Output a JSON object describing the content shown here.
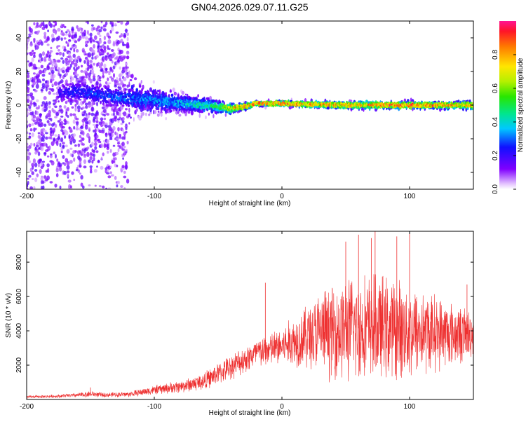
{
  "title": "GN04.2026.029.07.11.G25",
  "chart_data": [
    {
      "type": "heatmap",
      "xlabel": "Height of straight line (km)",
      "ylabel": "Frequency (Hz)",
      "xlim": [
        -200,
        150
      ],
      "ylim": [
        -50,
        50
      ],
      "x_ticks": [
        -200,
        -100,
        0,
        100
      ],
      "y_ticks": [
        -40,
        -20,
        0,
        20,
        40
      ],
      "colorbar": {
        "label": "Normalized spectral amplitude",
        "range": [
          0,
          1
        ],
        "ticks": [
          "0.0",
          "0.2",
          "0.4",
          "0.6",
          "0.8"
        ],
        "tick_values": [
          0,
          0.2,
          0.4,
          0.6,
          0.8
        ]
      },
      "band": {
        "center_frequency_hz": [
          [
            -200,
            5
          ],
          [
            -160,
            8
          ],
          [
            -120,
            4
          ],
          [
            -100,
            3
          ],
          [
            -80,
            1
          ],
          [
            -60,
            0
          ],
          [
            -40,
            -2
          ],
          [
            -30,
            -1
          ],
          [
            -20,
            1
          ],
          [
            0,
            1
          ],
          [
            50,
            0
          ],
          [
            100,
            0
          ],
          [
            150,
            0
          ]
        ],
        "half_width_hz": [
          [
            -200,
            40
          ],
          [
            -160,
            40
          ],
          [
            -130,
            30
          ],
          [
            -110,
            12
          ],
          [
            -80,
            8
          ],
          [
            -50,
            6
          ],
          [
            -35,
            3
          ],
          [
            -20,
            2
          ],
          [
            0,
            2
          ],
          [
            50,
            3
          ],
          [
            100,
            3
          ],
          [
            150,
            3
          ]
        ],
        "peak_amplitude": [
          [
            -200,
            0.1
          ],
          [
            -160,
            0.25
          ],
          [
            -120,
            0.3
          ],
          [
            -80,
            0.35
          ],
          [
            -50,
            0.5
          ],
          [
            -35,
            0.8
          ],
          [
            0,
            0.85
          ],
          [
            50,
            0.75
          ],
          [
            100,
            0.85
          ],
          [
            150,
            0.75
          ]
        ]
      }
    },
    {
      "type": "line",
      "xlabel": "Height of straight line (km)",
      "ylabel": "SNR (10 * v/v)",
      "xlim": [
        -200,
        150
      ],
      "ylim": [
        0,
        9800
      ],
      "x_ticks": [
        -200,
        -100,
        0,
        100
      ],
      "y_ticks": [
        2000,
        4000,
        6000,
        8000
      ],
      "series": [
        {
          "name": "SNR",
          "color": "#ee3030",
          "envelope": {
            "x": [
              -200,
              -180,
              -160,
              -150,
              -140,
              -120,
              -100,
              -80,
              -70,
              -60,
              -50,
              -40,
              -30,
              -20,
              -10,
              0,
              10,
              20,
              30,
              40,
              50,
              60,
              70,
              80,
              90,
              100,
              110,
              120,
              130,
              140,
              150
            ],
            "mean": [
              150,
              180,
              250,
              320,
              260,
              300,
              550,
              750,
              900,
              1100,
              1500,
              1900,
              2300,
              2700,
              2900,
              3100,
              3400,
              3700,
              3900,
              4000,
              4100,
              4150,
              4200,
              4150,
              4100,
              4000,
              3950,
              3900,
              3850,
              3800,
              3800
            ],
            "amplitude": [
              80,
              100,
              150,
              200,
              150,
              180,
              300,
              400,
              500,
              600,
              700,
              800,
              900,
              1000,
              1100,
              1300,
              1700,
              2200,
              2700,
              3100,
              3400,
              3500,
              3500,
              3400,
              3300,
              3100,
              2800,
              2500,
              2200,
              1900,
              1600
            ]
          },
          "peaks": [
            {
              "x": -150,
              "y": 700
            },
            {
              "x": -13,
              "y": 6800
            },
            {
              "x": 50,
              "y": 9200
            },
            {
              "x": 60,
              "y": 9600
            },
            {
              "x": 70,
              "y": 9400
            },
            {
              "x": 73,
              "y": 9800
            },
            {
              "x": 90,
              "y": 9500
            },
            {
              "x": 100,
              "y": 9800
            },
            {
              "x": 145,
              "y": 6700
            }
          ]
        }
      ]
    }
  ]
}
